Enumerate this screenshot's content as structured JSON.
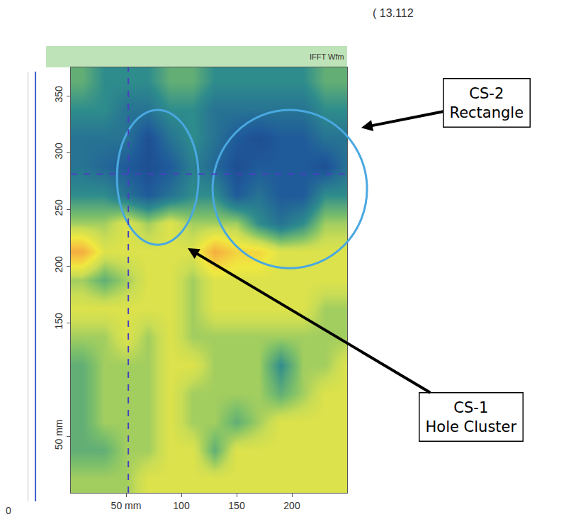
{
  "chart_data": {
    "type": "heatmap",
    "header": "( 13.112",
    "panel_label": "IFFT Wfm",
    "corner_label": "0",
    "x": [
      10,
      30,
      50,
      70,
      90,
      110,
      130,
      150,
      170,
      190,
      210,
      230,
      250
    ],
    "y": [
      12.5,
      37.5,
      62.5,
      87.5,
      112.5,
      137.5,
      162.5,
      187.5,
      212.5,
      237.5,
      262.5,
      287.5,
      312.5,
      337.5,
      362.5
    ],
    "z": [
      [
        6,
        6,
        6,
        7,
        7,
        7,
        7,
        7,
        7,
        7,
        7,
        7,
        7
      ],
      [
        5,
        5,
        6,
        6,
        7,
        7,
        5,
        7,
        7,
        7,
        7,
        7,
        7
      ],
      [
        5,
        6,
        6,
        6,
        7,
        6,
        6,
        5,
        6,
        7,
        7,
        7,
        7
      ],
      [
        5,
        6,
        6,
        6,
        7,
        6,
        6,
        6,
        6,
        5,
        6,
        7,
        7
      ],
      [
        5,
        6,
        6,
        6,
        7,
        7,
        6,
        6,
        6,
        4,
        6,
        6,
        7
      ],
      [
        6,
        6,
        7,
        6,
        7,
        6,
        6,
        6,
        6,
        6,
        6,
        6,
        6
      ],
      [
        7,
        7,
        7,
        7,
        7,
        6,
        7,
        7,
        7,
        7,
        7,
        6,
        6
      ],
      [
        6,
        5,
        6,
        7,
        7,
        6,
        7,
        7,
        7,
        7,
        7,
        7,
        7
      ],
      [
        9,
        7,
        7,
        7,
        7,
        7,
        9,
        8,
        8,
        7,
        7,
        7,
        7
      ],
      [
        6,
        6,
        7,
        6,
        7,
        6,
        6,
        6,
        4,
        3,
        4,
        6,
        6
      ],
      [
        4,
        4,
        3,
        2,
        3,
        4,
        4,
        2,
        3,
        2,
        2,
        4,
        4
      ],
      [
        3,
        2.5,
        2,
        1.5,
        2,
        3.5,
        2.5,
        1.5,
        2,
        2,
        2,
        1.5,
        3
      ],
      [
        3,
        3,
        3,
        1.5,
        3,
        4,
        3,
        2,
        1.5,
        2,
        2,
        3,
        3
      ],
      [
        4,
        4,
        3,
        3,
        4,
        4,
        3,
        3,
        3,
        3,
        3,
        4,
        4
      ],
      [
        5,
        4,
        4,
        4,
        5,
        5,
        4,
        4,
        4,
        4,
        4,
        5,
        5
      ]
    ],
    "zlim": [
      0,
      10
    ],
    "xlim": [
      0,
      250
    ],
    "ylim": [
      0,
      375
    ],
    "xticks": [
      {
        "value": 50,
        "label": "50 mm"
      },
      100,
      150,
      200
    ],
    "yticks": [
      {
        "value": 50,
        "label": "50 mm"
      },
      150,
      200,
      250,
      300,
      350
    ],
    "grid": false,
    "cursor": {
      "x": 52,
      "y": 281
    },
    "annotations": [
      {
        "text": [
          "CS-2",
          "Rectangle"
        ]
      },
      {
        "text": [
          "CS-1",
          "Hole Cluster"
        ]
      }
    ]
  }
}
